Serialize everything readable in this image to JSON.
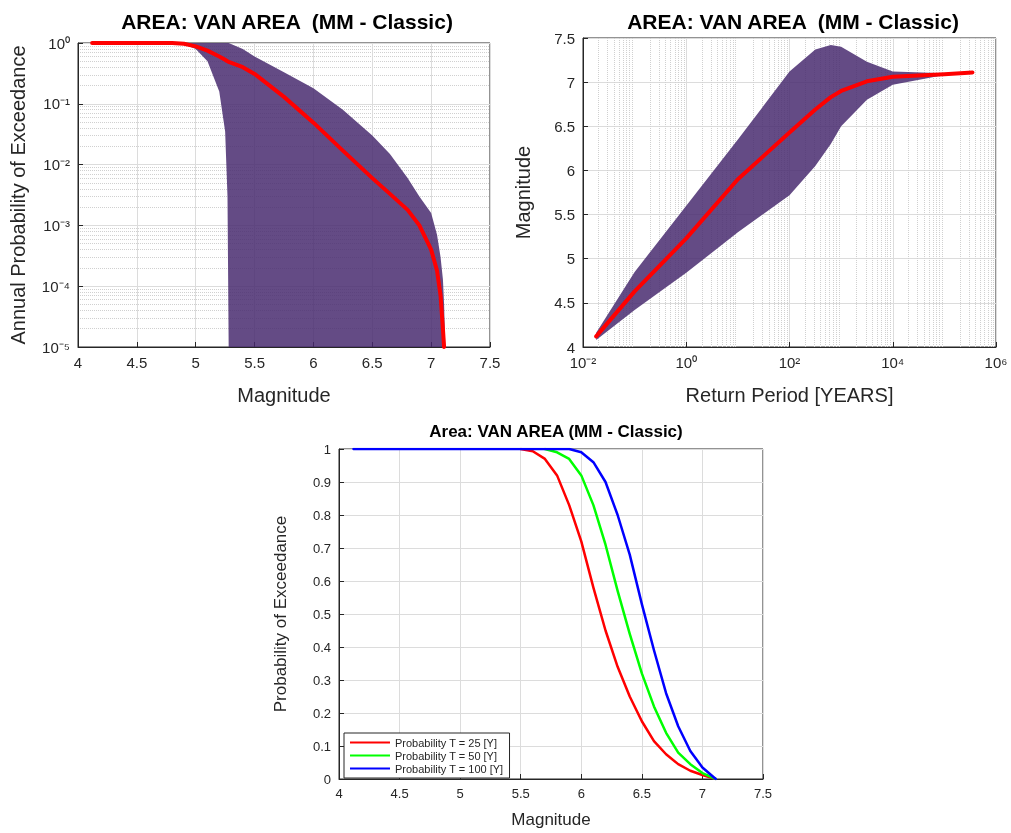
{
  "chart_data": [
    {
      "type": "line",
      "title": "AREA: VAN AREA  (MM - Classic)",
      "xlabel": "Magnitude",
      "ylabel": "Annual Probability of Exceedance",
      "log": "y",
      "grid": true,
      "legend": false,
      "x": [
        4.12,
        4.5,
        4.8,
        4.9,
        5.0,
        5.1,
        5.2,
        5.25,
        5.27,
        5.28,
        5.4,
        5.5,
        5.75,
        6.0,
        6.25,
        6.5,
        6.65,
        6.8,
        6.9,
        7.0,
        7.05,
        7.08,
        7.1,
        7.11,
        7.12
      ],
      "xlim": [
        4,
        7.5
      ],
      "xticks": [
        4,
        4.5,
        5,
        5.5,
        6,
        6.5,
        7,
        7.5
      ],
      "ylim": [
        1e-05,
        1
      ],
      "yticks": [
        {
          "value": 1e-05,
          "label": "10⁻⁵"
        },
        {
          "value": 0.0001,
          "label": "10⁻⁴"
        },
        {
          "value": 0.001,
          "label": "10⁻³"
        },
        {
          "value": 0.01,
          "label": "10⁻²"
        },
        {
          "value": 0.1,
          "label": "10⁻¹"
        },
        {
          "value": 1,
          "label": "10⁰"
        }
      ],
      "series": [
        {
          "color": "#ff0000",
          "values": [
            1,
            1,
            1,
            0.97,
            0.88,
            0.75,
            0.6,
            0.53,
            0.5,
            0.49,
            0.4,
            0.31,
            0.13,
            0.049,
            0.017,
            0.006,
            0.0033,
            0.0018,
            0.001,
            0.0004,
            0.00018,
            7e-05,
            2e-05,
            1e-05,
            null
          ],
          "lower": [
            null,
            null,
            null,
            0.95,
            0.8,
            0.5,
            0.16,
            0.035,
            0.003,
            1e-05,
            1e-05,
            1e-05,
            1e-05,
            1e-05,
            1e-05,
            1e-05,
            1e-05,
            1e-05,
            1e-05,
            1e-05,
            1e-05,
            1e-05,
            1e-05,
            1e-05,
            1e-05
          ],
          "upper": [
            null,
            null,
            null,
            1,
            1,
            1,
            1,
            1,
            1,
            1,
            0.8,
            0.6,
            0.33,
            0.18,
            0.08,
            0.03,
            0.015,
            0.006,
            0.003,
            0.0016,
            0.0007,
            0.0003,
            0.00013,
            5e-05,
            1e-05
          ]
        }
      ]
    },
    {
      "type": "line",
      "title": "AREA: VAN AREA  (MM - Classic)",
      "xlabel": "Return Period [YEARS]",
      "ylabel": "Magnitude",
      "log": "x",
      "grid": true,
      "legend": false,
      "x": [
        0.018,
        0.1,
        1,
        10,
        100,
        316,
        631,
        1000,
        3162,
        10000,
        100000,
        350000
      ],
      "xlim": [
        0.01,
        1000000
      ],
      "xticks": [
        {
          "value": 0.01,
          "label": "10⁻²"
        },
        {
          "value": 1,
          "label": "10⁰"
        },
        {
          "value": 100,
          "label": "10²"
        },
        {
          "value": 10000,
          "label": "10⁴"
        },
        {
          "value": 1000000,
          "label": "10⁶"
        }
      ],
      "ylim": [
        4,
        7.5
      ],
      "yticks": [
        4,
        4.5,
        5,
        5.5,
        6,
        6.5,
        7,
        7.5
      ],
      "series": [
        {
          "color": "#ff0000",
          "values": [
            4.12,
            4.63,
            5.23,
            5.9,
            6.43,
            6.69,
            6.83,
            6.9,
            7.01,
            7.06,
            7.09,
            7.11
          ],
          "lower": [
            4.08,
            4.42,
            4.84,
            5.3,
            5.72,
            6.05,
            6.3,
            6.5,
            6.8,
            6.97,
            7.08,
            7.11
          ],
          "upper": [
            4.16,
            4.85,
            5.6,
            6.35,
            7.12,
            7.37,
            7.42,
            7.4,
            7.23,
            7.12,
            7.1,
            7.11
          ]
        }
      ]
    },
    {
      "type": "line",
      "title": "Area: VAN AREA (MM - Classic)",
      "xlabel": "Magnitude",
      "ylabel": "Probability of Exceedance",
      "grid": true,
      "legend": "bottom left",
      "x": [
        4.12,
        5.5,
        5.6,
        5.7,
        5.8,
        5.9,
        6.0,
        6.1,
        6.2,
        6.3,
        6.4,
        6.5,
        6.6,
        6.7,
        6.8,
        6.9,
        7.0,
        7.11
      ],
      "xlim": [
        4,
        7.5
      ],
      "xticks": [
        4,
        4.5,
        5,
        5.5,
        6,
        6.5,
        7,
        7.5
      ],
      "ylim": [
        0,
        1
      ],
      "yticks": [
        0,
        0.1,
        0.2,
        0.3,
        0.4,
        0.5,
        0.6,
        0.7,
        0.8,
        0.9,
        1
      ],
      "series": [
        {
          "name": "Probability T = 25 [Y]",
          "color": "#ff0000",
          "values": [
            null,
            1,
            0.993,
            0.97,
            0.92,
            0.83,
            0.72,
            0.58,
            0.45,
            0.34,
            0.25,
            0.175,
            0.115,
            0.075,
            0.045,
            0.025,
            0.012,
            0
          ]
        },
        {
          "name": "Probability T = 50 [Y]",
          "color": "#00ff00",
          "values": [
            null,
            null,
            null,
            1,
            0.99,
            0.97,
            0.92,
            0.83,
            0.71,
            0.57,
            0.44,
            0.32,
            0.22,
            0.14,
            0.08,
            0.045,
            0.018,
            0
          ]
        },
        {
          "name": "Probability T = 100 [Y]",
          "color": "#0000ff",
          "values": [
            1,
            1,
            1,
            1,
            1,
            1,
            0.99,
            0.96,
            0.9,
            0.8,
            0.68,
            0.53,
            0.39,
            0.26,
            0.16,
            0.085,
            0.035,
            0
          ]
        }
      ]
    }
  ]
}
